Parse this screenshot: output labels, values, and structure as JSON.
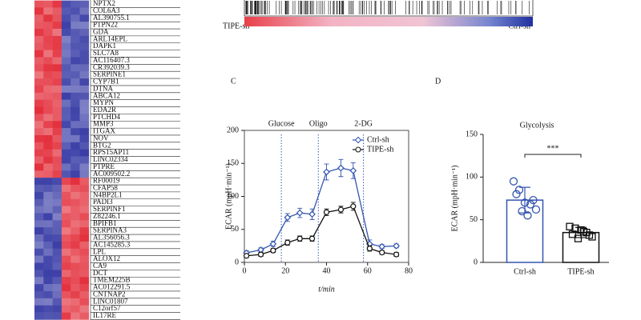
{
  "heatmap": {
    "up_genes": [
      "NPTX2",
      "COL6A3",
      "AL390755.1",
      "PTPN22",
      "GDA",
      "ARL14EPL",
      "DAPK1",
      "SLC7A8",
      "AC116407.3",
      "CR392039.3",
      "SERPINE1",
      "CYP7B1",
      "DTNA",
      "ABCA12",
      "MYPN",
      "EDA2R",
      "PTCHD4",
      "MMP3",
      "ITGAX",
      "NOV",
      "BTG2",
      "RPS15AP11",
      "LINC02334",
      "PTPRE",
      "AC009502.2"
    ],
    "down_genes": [
      "RF00019",
      "CFAP58",
      "N4BP2L1",
      "PADI3",
      "SERPINF1",
      "Z82246.1",
      "BPIFB1",
      "SERPINA3",
      "AL356056.3",
      "AC145285.3",
      "LPL",
      "ALOX12",
      "CA9",
      "DCT",
      "TMEM225B",
      "AC012291.5",
      "CNTNAP2",
      "LINC01807",
      "C12orf57",
      "IL17RE"
    ],
    "high_color": "#e3303c",
    "low_color": "#3a3ea6"
  },
  "gsea": {
    "left_label": "TIPE-sh",
    "right_label": "Ctrl-sh"
  },
  "chart_data": [
    {
      "panel": "C",
      "type": "line",
      "xlabel": "t/min",
      "ylabel": "ECAR (mpH·min⁻¹)",
      "xlim": [
        0,
        80
      ],
      "xticks": [
        0,
        20,
        40,
        60,
        80
      ],
      "ylim": [
        0,
        200
      ],
      "yticks": [
        0,
        50,
        100,
        150,
        200
      ],
      "annotations": [
        {
          "text": "Glucose",
          "x": 18
        },
        {
          "text": "Oligo",
          "x": 36
        },
        {
          "text": "2-DG",
          "x": 58
        }
      ],
      "x": [
        1,
        8,
        14,
        21,
        27,
        33,
        40,
        47,
        53,
        61,
        67,
        74
      ],
      "series": [
        {
          "name": "Ctrl-sh",
          "color": "#3355b0",
          "marker": "diamond",
          "values": [
            14.5,
            19,
            28,
            68,
            75,
            73,
            137,
            143,
            139,
            28,
            24,
            25
          ],
          "errors": [
            3,
            3,
            4,
            6,
            7,
            8,
            12,
            13,
            12,
            6,
            3,
            3
          ]
        },
        {
          "name": "TIPE-sh",
          "color": "#111111",
          "marker": "circle",
          "values": [
            10,
            12,
            18,
            30,
            36,
            36,
            76,
            80,
            85,
            21,
            15,
            12
          ],
          "errors": [
            3,
            3,
            3,
            4,
            4,
            4,
            5,
            5,
            6,
            4,
            3,
            3
          ]
        }
      ]
    },
    {
      "panel": "D",
      "type": "bar",
      "title": "Glycolysis",
      "ylabel": "ECAR (mpH·min⁻¹)",
      "ylim": [
        0,
        150
      ],
      "yticks": [
        0,
        50,
        100,
        150
      ],
      "categories": [
        "Ctrl-sh",
        "TIPE-sh"
      ],
      "values": [
        73,
        35
      ],
      "errors": [
        15,
        6
      ],
      "colors": [
        "#3355b0",
        "#111111"
      ],
      "points": [
        [
          95,
          85,
          70,
          68,
          62,
          80,
          60,
          55,
          73
        ],
        [
          42,
          40,
          38,
          35,
          30,
          33,
          28,
          36,
          32
        ]
      ],
      "significance": "***"
    }
  ]
}
